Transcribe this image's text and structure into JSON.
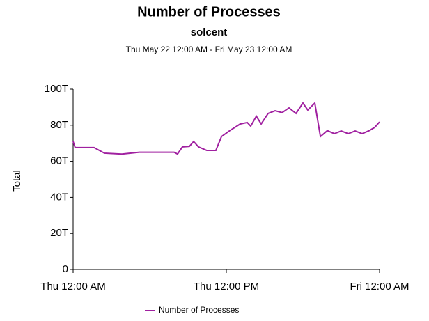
{
  "chart_data": {
    "type": "line",
    "title": "Number of Processes",
    "subtitle": "solcent",
    "date_range": "Thu May 22 12:00 AM - Fri May 23 12:00 AM",
    "y_label": "Total",
    "x": [
      0,
      0.16,
      1.64,
      2.45,
      3.82,
      5.18,
      7.91,
      8.18,
      8.56,
      9.11,
      9.44,
      9.82,
      10.47,
      11.18,
      11.62,
      12.27,
      13.09,
      13.64,
      13.91,
      14.35,
      14.73,
      15.27,
      15.82,
      16.37,
      16.91,
      17.46,
      18.0,
      18.38,
      18.93,
      19.37,
      19.91,
      20.46,
      21.0,
      21.55,
      22.09,
      22.64,
      23.19,
      23.62,
      24
    ],
    "series": [
      {
        "name": "Number of Processes",
        "color": "#a020a0",
        "values": [
          71,
          67.6,
          67.6,
          64.5,
          64,
          65,
          65,
          64,
          68,
          68.3,
          71,
          68,
          66,
          66,
          73.7,
          77,
          80.7,
          81.5,
          79.5,
          85,
          80.7,
          86.5,
          88,
          87,
          89.6,
          86.5,
          92.3,
          88.4,
          92.3,
          73.7,
          77,
          75.3,
          76.8,
          75.3,
          76.8,
          75.3,
          77,
          78.8,
          81.8
        ]
      }
    ],
    "xlim": [
      0,
      24
    ],
    "xticks": [
      {
        "value": 0,
        "label": "Thu 12:00 AM"
      },
      {
        "value": 12,
        "label": "Thu 12:00 PM"
      },
      {
        "value": 24,
        "label": "Fri 12:00 AM"
      }
    ],
    "ylim": [
      0,
      100
    ],
    "yticks": [
      {
        "value": 0,
        "label": "0"
      },
      {
        "value": 20,
        "label": "20T"
      },
      {
        "value": 40,
        "label": "40T"
      },
      {
        "value": 60,
        "label": "60T"
      },
      {
        "value": 80,
        "label": "80T"
      },
      {
        "value": 100,
        "label": "100T"
      }
    ],
    "grid": false
  }
}
